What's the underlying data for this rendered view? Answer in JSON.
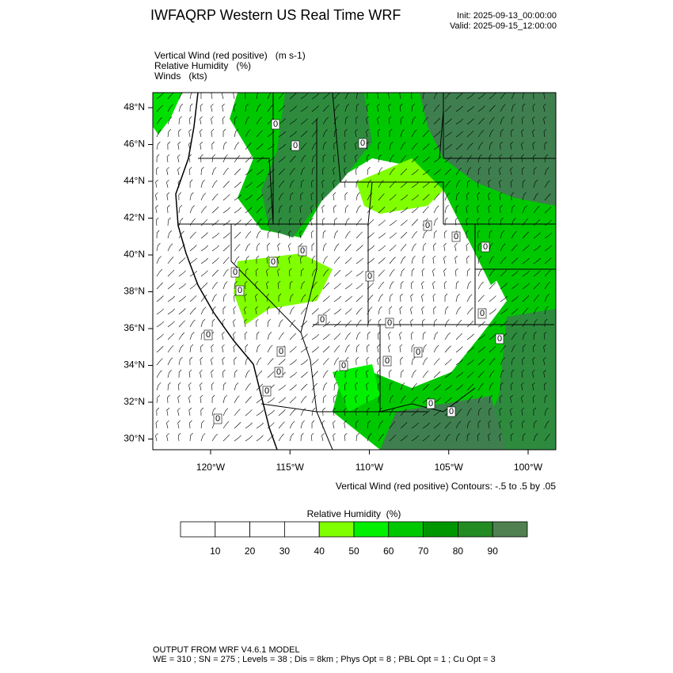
{
  "header": {
    "title": "IWFAQRP Western US Real Time WRF",
    "init": "Init: 2025-09-13_00:00:00",
    "valid": "Valid: 2025-09-15_12:00:00"
  },
  "fields": [
    "Vertical Wind (red positive)   (m s-1)",
    "Relative Humidity   (%)",
    "Winds   (kts)"
  ],
  "map": {
    "lat_ticks": [
      {
        "value": 48,
        "label": "48°N"
      },
      {
        "value": 46,
        "label": "46°N"
      },
      {
        "value": 44,
        "label": "44°N"
      },
      {
        "value": 42,
        "label": "42°N"
      },
      {
        "value": 40,
        "label": "40°N"
      },
      {
        "value": 38,
        "label": "38°N"
      },
      {
        "value": 36,
        "label": "36°N"
      },
      {
        "value": 34,
        "label": "34°N"
      },
      {
        "value": 32,
        "label": "32°N"
      },
      {
        "value": 30,
        "label": "30°N"
      }
    ],
    "lon_ticks": [
      {
        "value": -120,
        "label": "120°W"
      },
      {
        "value": -115,
        "label": "115°W"
      },
      {
        "value": -110,
        "label": "110°W"
      },
      {
        "value": -105,
        "label": "105°W"
      },
      {
        "value": -100,
        "label": "100°W"
      }
    ],
    "contour_labels": [
      "0",
      "0",
      "0",
      "0",
      "0",
      "0",
      "0",
      "0",
      "0",
      "0",
      "0",
      "0",
      "0",
      "0",
      "0",
      "0",
      "0",
      "0",
      "0",
      "0",
      "0",
      "0",
      "0",
      "0",
      "0"
    ],
    "caption": "Vertical Wind (red positive) Contours: -.5 to .5 by .05"
  },
  "colorbar": {
    "title": "Relative Humidity  (%)",
    "labels": [
      10,
      20,
      30,
      40,
      50,
      60,
      70,
      80,
      90
    ],
    "colors": [
      "#ffffff",
      "#ffffff",
      "#ffffff",
      "#ffffff",
      "#80ff00",
      "#00f000",
      "#00c800",
      "#009600",
      "#228b22",
      "#508050"
    ]
  },
  "footer": [
    "OUTPUT FROM WRF V4.6.1 MODEL",
    "WE = 310 ; SN = 275 ; Levels = 38 ; Dis = 8km ; Phys Opt = 8 ; PBL Opt = 1 ; Cu Opt = 3"
  ]
}
